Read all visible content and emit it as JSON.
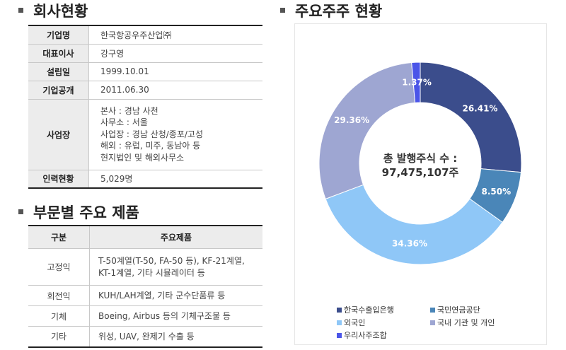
{
  "sections": {
    "company_title": "회사현황",
    "products_title": "부문별 주요 제품",
    "shareholders_title": "주요주주 현황"
  },
  "company": {
    "rows": [
      {
        "key": "기업명",
        "value": "한국항공우주산업㈜"
      },
      {
        "key": "대표이사",
        "value": "강구영"
      },
      {
        "key": "설립일",
        "value": "1999.10.01"
      },
      {
        "key": "기업공개",
        "value": "2011.06.30"
      },
      {
        "key": "사업장",
        "lines": [
          "본사 : 경남 사천",
          "사무소 : 서울",
          "사업장 : 경남 산청/종포/고성",
          "해외 : 유럽, 미주, 동남아 등",
          "현지법인 및 해외사무소"
        ]
      },
      {
        "key": "인력현황",
        "value": "5,029명"
      }
    ]
  },
  "products": {
    "header": {
      "division": "구분",
      "products": "주요제품"
    },
    "rows": [
      {
        "division": "고정익",
        "lines": [
          "T-50계열(T-50, FA-50 등), KF-21계열,",
          "KT-1계열, 기타 시뮬레이터 등"
        ]
      },
      {
        "division": "회전익",
        "lines": [
          "KUH/LAH계열, 기타 군수단품류 등"
        ]
      },
      {
        "division": "기체",
        "lines": [
          "Boeing, Airbus 등의 기체구조물 등"
        ]
      },
      {
        "division": "기타",
        "lines": [
          "위성, UAV, 완제기 수출 등"
        ]
      }
    ]
  },
  "chart_data": {
    "type": "pie",
    "title": "주요주주 현황",
    "center_text": [
      "총 발행주식 수 :",
      "97,475,107주"
    ],
    "series": [
      {
        "name": "한국수출입은행",
        "value": 26.41,
        "label": "26.41%",
        "color": "#3b4d8c"
      },
      {
        "name": "국민연금공단",
        "value": 8.5,
        "label": "8.50%",
        "color": "#4a86b8"
      },
      {
        "name": "외국인",
        "value": 34.36,
        "label": "34.36%",
        "color": "#8fc7f7"
      },
      {
        "name": "국내 기관 및 개인",
        "value": 29.36,
        "label": "29.36%",
        "color": "#9ea6d2"
      },
      {
        "name": "우리사주조합",
        "value": 1.37,
        "label": "1.37%",
        "color": "#4b55e8"
      }
    ],
    "legend_position": "bottom"
  }
}
